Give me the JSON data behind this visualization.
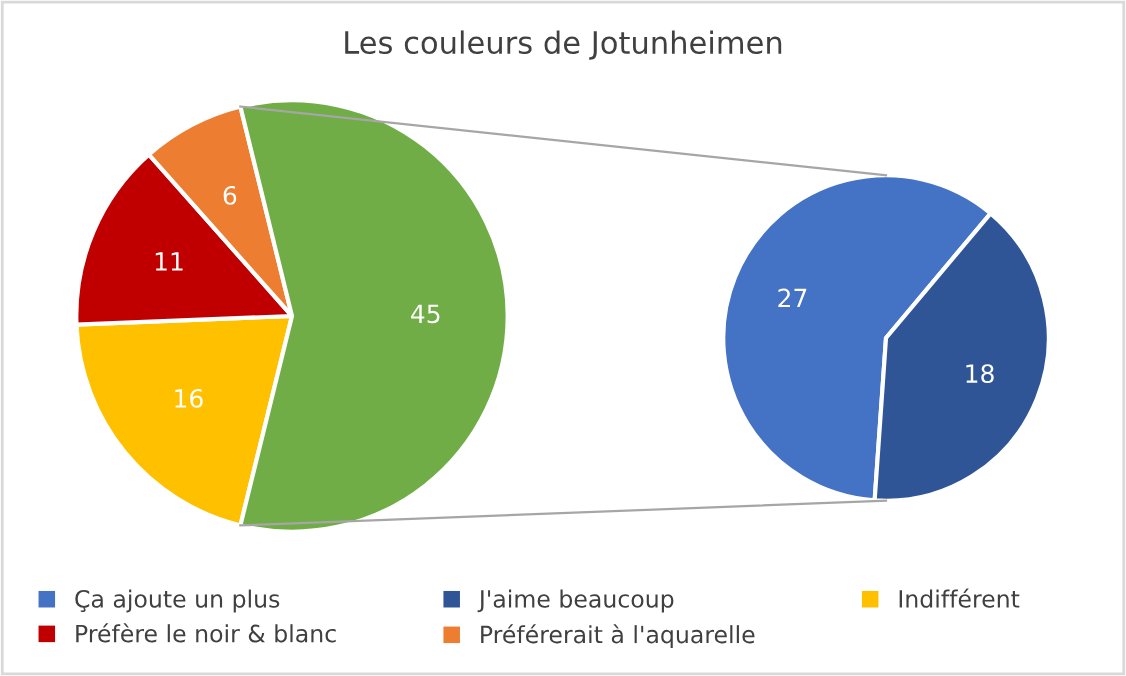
{
  "chart_data": [
    {
      "type": "pie",
      "title": "Les couleurs de Jotunheimen",
      "categories": [
        "Indifférent",
        "Préfère le noir & blanc",
        "Préférerait à l'aquarelle",
        null
      ],
      "values": [
        16,
        11,
        6,
        45
      ],
      "colors": [
        "#ffc000",
        "#c00000",
        "#ed7d31",
        "#70ad47"
      ],
      "data_labels": true,
      "legend": "bottom"
    },
    {
      "type": "pie",
      "categories": [
        "Ça ajoute un plus",
        "J'aime beaucoup"
      ],
      "values": [
        27,
        18
      ],
      "colors": [
        "#4472c4",
        "#2f5597"
      ],
      "data_labels": true,
      "legend": "bottom"
    }
  ]
}
